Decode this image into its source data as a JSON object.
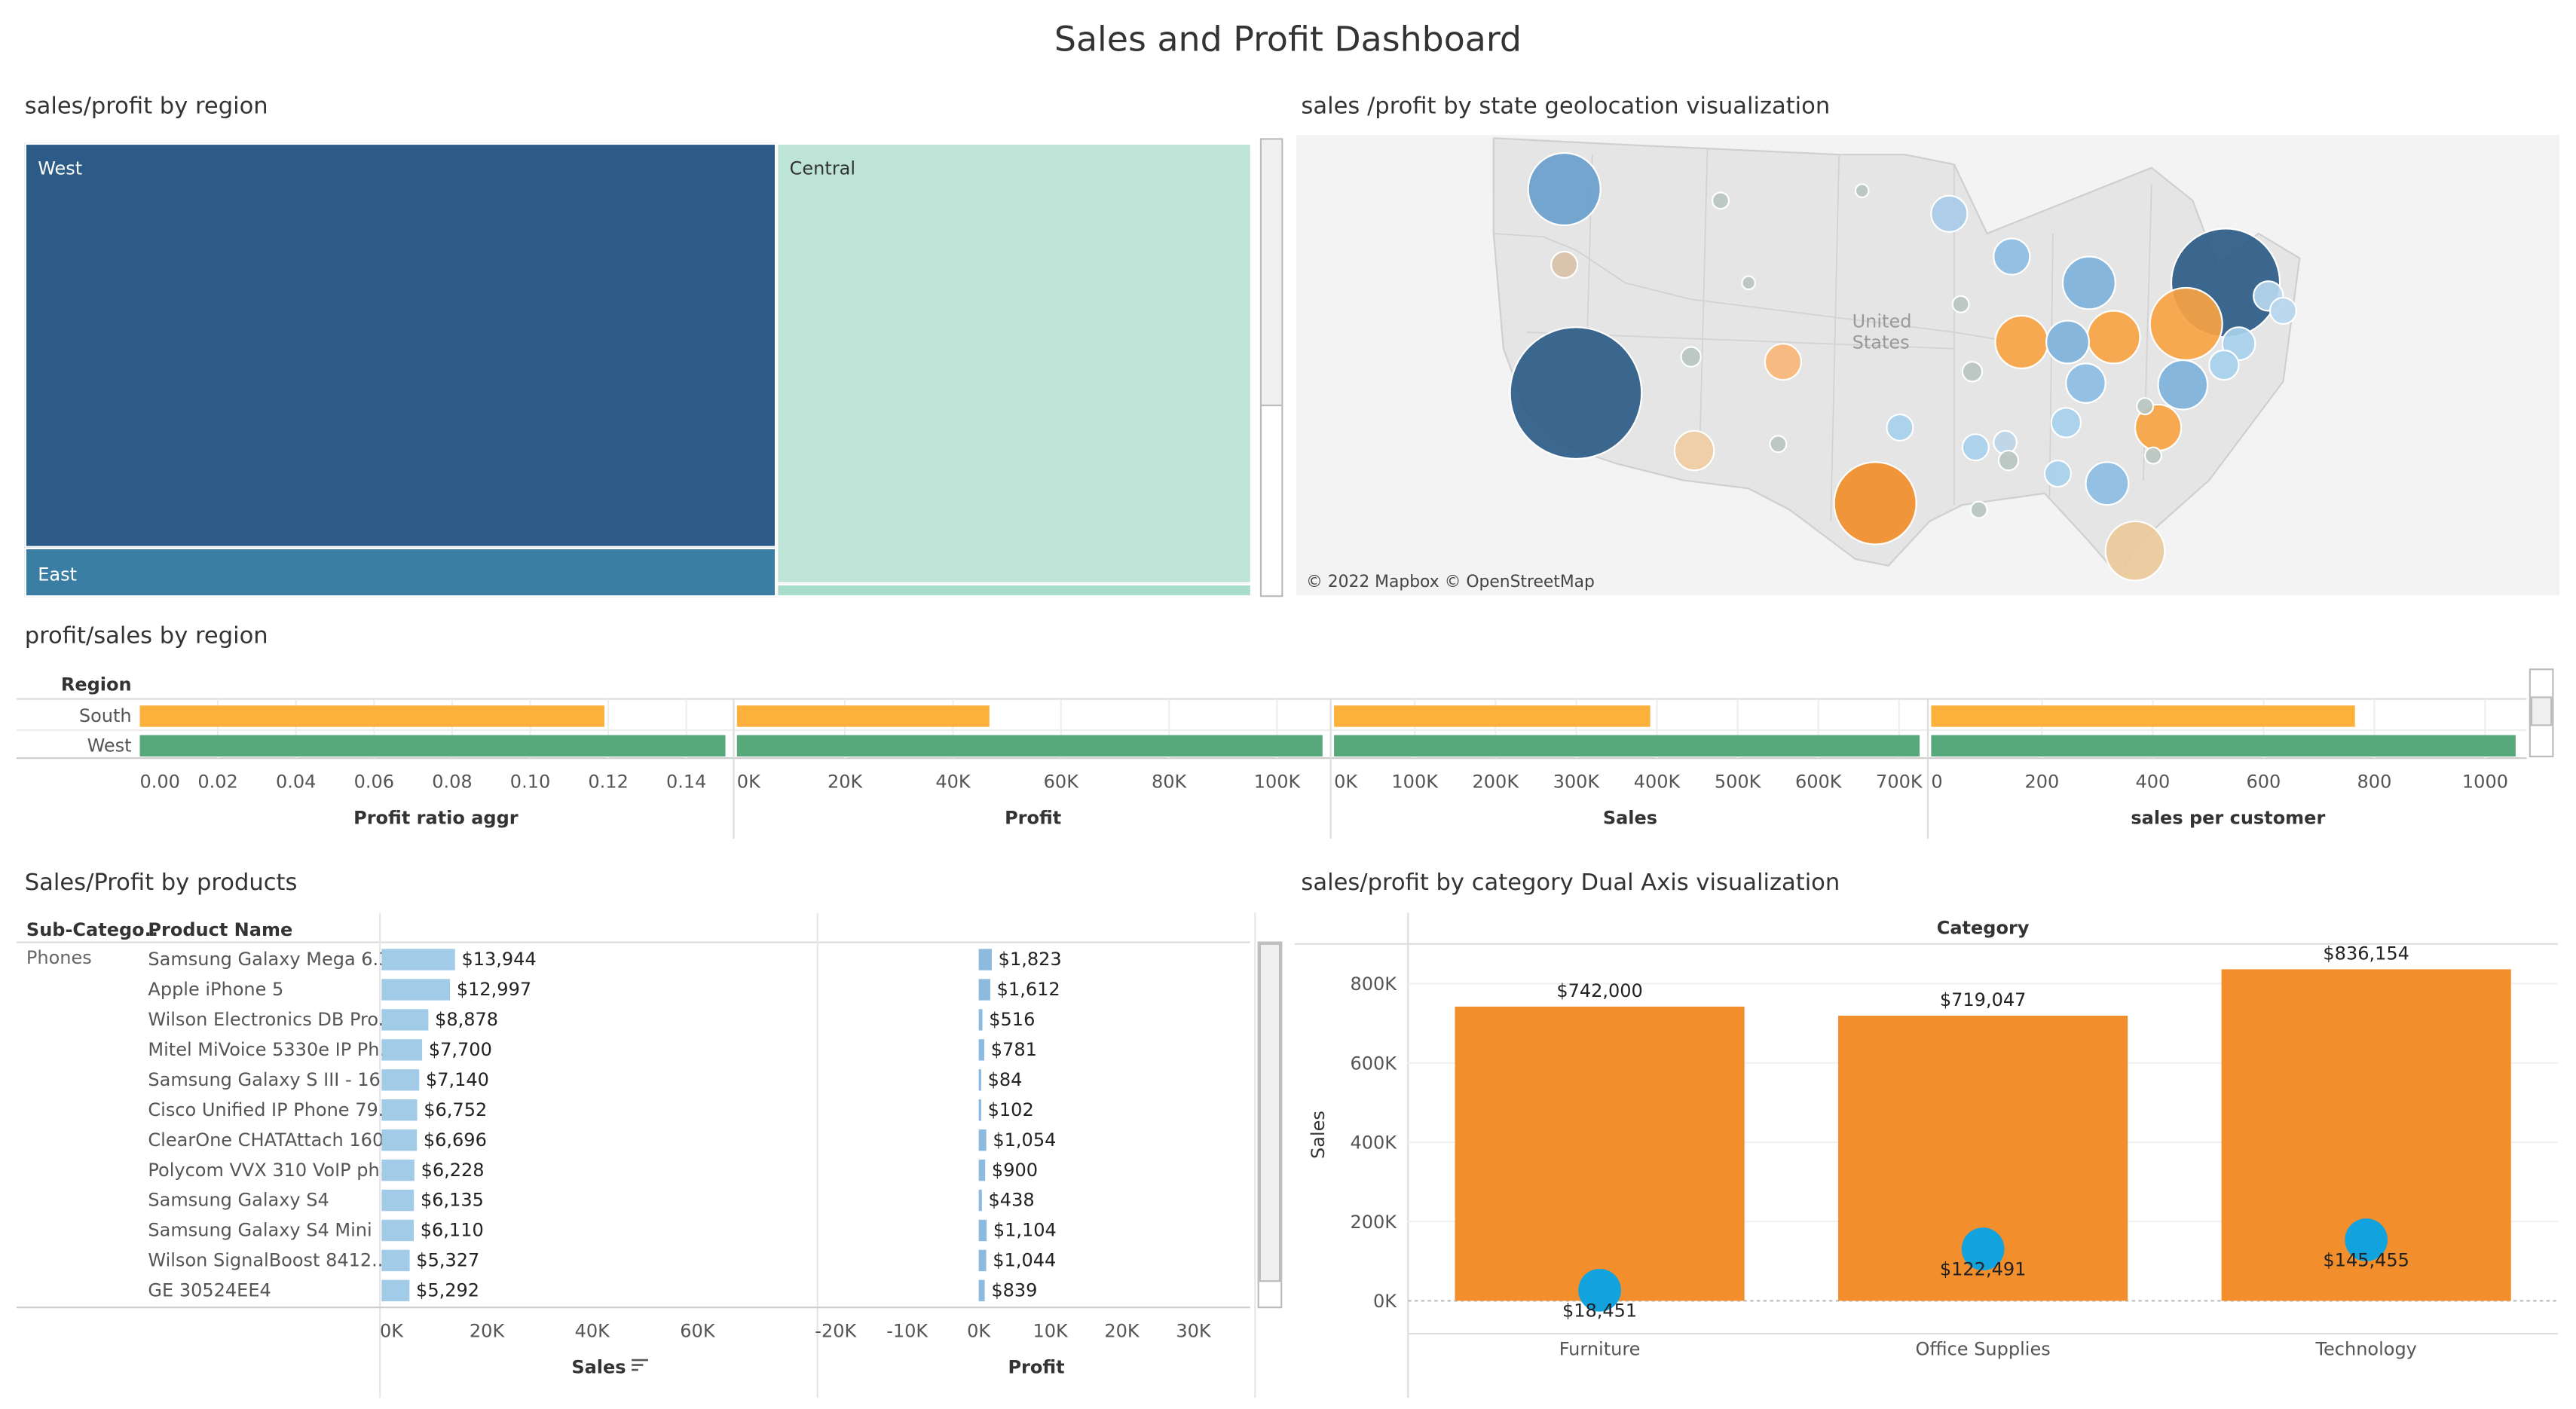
{
  "dashboard": {
    "title": "Sales and Profit Dashboard",
    "colors": {
      "west": "#2d5b87",
      "east": "#3a7fa3",
      "central": "#bde4d7",
      "central_small": "#a8dccb",
      "south_bar": "#fbb13c",
      "west_bar": "#57a87a",
      "orange": "#f28e2b",
      "blue_dot": "#12a2de",
      "prod_bar": "#a2cbe8",
      "prod_profit": "#8dbbe0"
    }
  },
  "treemap": {
    "title": "sales/profit by region",
    "cells": [
      {
        "label": "West",
        "sales_share": 0.39
      },
      {
        "label": "East",
        "sales_share": 0.04
      },
      {
        "label": "Central",
        "sales_share": 0.55
      },
      {
        "label": "",
        "sales_share": 0.02
      }
    ]
  },
  "map": {
    "title": "sales /profit by state geolocation visualization",
    "attribution": "© 2022 Mapbox © OpenStreetMap",
    "country_label": "United States",
    "land_color": "#e7e7e7",
    "water_color": "#ffffff"
  },
  "region_bars": {
    "title": "profit/sales by region",
    "header": "Region",
    "rows": [
      "South",
      "West"
    ],
    "panels": [
      {
        "label": "Profit ratio aggr",
        "ticks": [
          "0.00",
          "0.02",
          "0.04",
          "0.06",
          "0.08",
          "0.10",
          "0.12",
          "0.14"
        ],
        "values": [
          0.119,
          0.15
        ],
        "max": 0.15
      },
      {
        "label": "Profit",
        "ticks": [
          "0K",
          "20K",
          "40K",
          "60K",
          "80K",
          "100K"
        ],
        "values": [
          46749,
          108418
        ],
        "max": 108418
      },
      {
        "label": "Sales",
        "ticks": [
          "0K",
          "100K",
          "200K",
          "300K",
          "400K",
          "500K",
          "600K",
          "700K"
        ],
        "values": [
          391722,
          725458
        ],
        "max": 725458
      },
      {
        "label": "sales per customer",
        "ticks": [
          "0",
          "200",
          "400",
          "600",
          "800",
          "1000"
        ],
        "values": [
          765,
          1055
        ],
        "max": 1060
      }
    ]
  },
  "products": {
    "title": "Sales/Profit by products",
    "col_subcat": "Sub-Catego..",
    "col_name": "Product Name",
    "subcategory": "Phones",
    "sales_axis_label": "Sales",
    "profit_axis_label": "Profit",
    "sales_ticks": [
      "0K",
      "20K",
      "40K",
      "60K"
    ],
    "profit_ticks": [
      "-20K",
      "-10K",
      "0K",
      "10K",
      "20K",
      "30K"
    ],
    "rows": [
      {
        "name": "Samsung Galaxy Mega 6.3",
        "sales": 13944,
        "sales_label": "$13,944",
        "profit": 1823,
        "profit_label": "$1,823"
      },
      {
        "name": "Apple iPhone 5",
        "sales": 12997,
        "sales_label": "$12,997",
        "profit": 1612,
        "profit_label": "$1,612"
      },
      {
        "name": "Wilson Electronics DB Pro..",
        "sales": 8878,
        "sales_label": "$8,878",
        "profit": 516,
        "profit_label": "$516"
      },
      {
        "name": "Mitel MiVoice 5330e IP Ph..",
        "sales": 7700,
        "sales_label": "$7,700",
        "profit": 781,
        "profit_label": "$781"
      },
      {
        "name": "Samsung Galaxy S III - 16..",
        "sales": 7140,
        "sales_label": "$7,140",
        "profit": 84,
        "profit_label": "$84"
      },
      {
        "name": "Cisco Unified IP Phone 79..",
        "sales": 6752,
        "sales_label": "$6,752",
        "profit": 102,
        "profit_label": "$102"
      },
      {
        "name": "ClearOne CHATAttach 160..",
        "sales": 6696,
        "sales_label": "$6,696",
        "profit": 1054,
        "profit_label": "$1,054"
      },
      {
        "name": "Polycom VVX 310 VoIP ph..",
        "sales": 6228,
        "sales_label": "$6,228",
        "profit": 900,
        "profit_label": "$900"
      },
      {
        "name": "Samsung Galaxy S4",
        "sales": 6135,
        "sales_label": "$6,135",
        "profit": 438,
        "profit_label": "$438"
      },
      {
        "name": "Samsung Galaxy S4 Mini",
        "sales": 6110,
        "sales_label": "$6,110",
        "profit": 1104,
        "profit_label": "$1,104"
      },
      {
        "name": "Wilson SignalBoost 8412..",
        "sales": 5327,
        "sales_label": "$5,327",
        "profit": 1044,
        "profit_label": "$1,044"
      },
      {
        "name": "GE 30524EE4",
        "sales": 5292,
        "sales_label": "$5,292",
        "profit": 839,
        "profit_label": "$839"
      }
    ]
  },
  "chart_data": {
    "type": "bar",
    "title": "sales/profit by category Dual Axis visualization",
    "header": "Category",
    "ylabel": "Sales",
    "ylim": [
      0,
      900000
    ],
    "yticks": [
      "0K",
      "200K",
      "400K",
      "600K",
      "800K"
    ],
    "categories": [
      "Furniture",
      "Office Supplies",
      "Technology"
    ],
    "series": [
      {
        "name": "Sales",
        "values": [
          742000,
          719047,
          836154
        ],
        "labels": [
          "$742,000",
          "$719,047",
          "$836,154"
        ],
        "mark": "bar"
      },
      {
        "name": "Profit",
        "values": [
          18451,
          122491,
          145455
        ],
        "labels": [
          "$18,451",
          "$122,491",
          "$145,455"
        ],
        "mark": "circle"
      }
    ]
  }
}
